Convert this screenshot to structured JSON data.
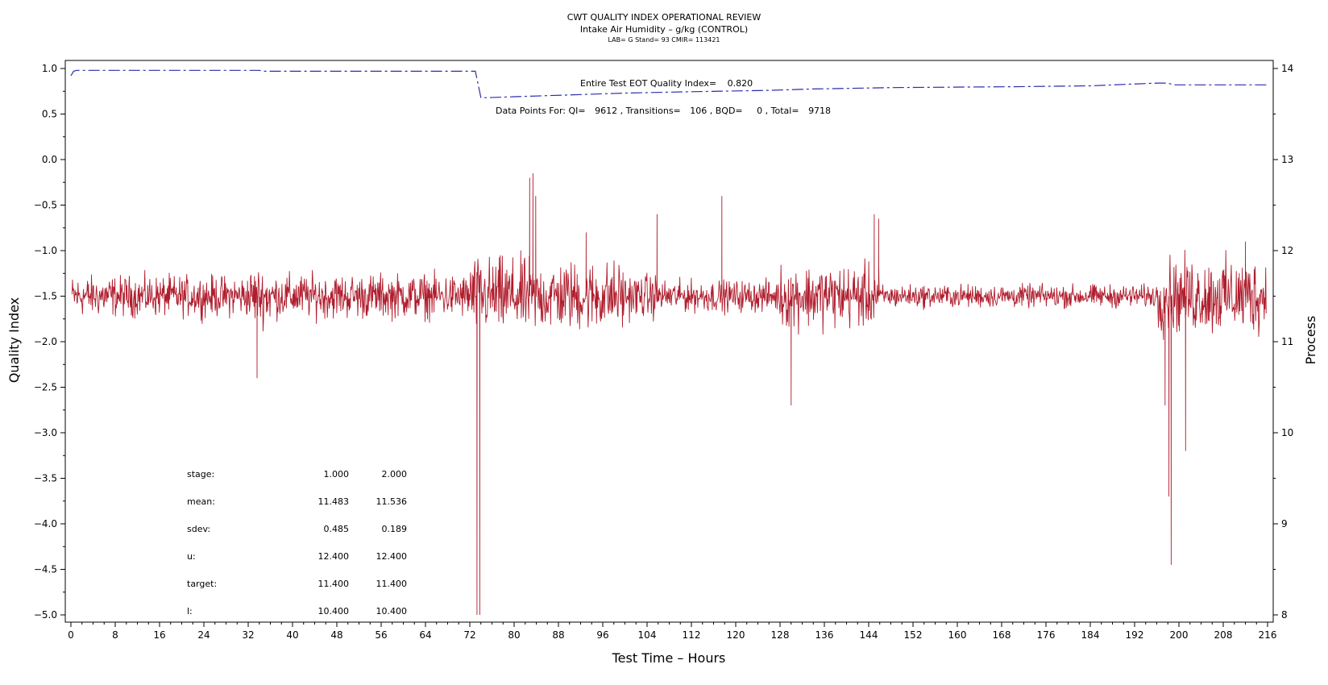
{
  "chart_data": {
    "type": "line",
    "title": "CWT QUALITY INDEX OPERATIONAL REVIEW",
    "subtitle": "Intake Air Humidity – g/kg (CONTROL)",
    "subtitle2": "LAB= G Stand= 93 CMIR= 113421",
    "xlabel": "Test Time – Hours",
    "ylabel": "Quality Index",
    "y2label": "Process",
    "xlim": [
      0,
      216
    ],
    "ylim": [
      -5.0,
      1.0
    ],
    "y2lim": [
      8,
      14
    ],
    "x_ticks": [
      0,
      8,
      16,
      24,
      32,
      40,
      48,
      56,
      64,
      72,
      80,
      88,
      96,
      104,
      112,
      120,
      128,
      136,
      144,
      152,
      160,
      168,
      176,
      184,
      192,
      200,
      208,
      216
    ],
    "x_tick_labels": [
      "0",
      "8",
      "16",
      "24",
      "32",
      "40",
      "48",
      "56",
      "64",
      "72",
      "80",
      "88",
      "96",
      "104",
      "112",
      "120",
      "128",
      "136",
      "144",
      "152",
      "160",
      "168",
      "176",
      "184",
      "192",
      "200",
      "208",
      "216"
    ],
    "y_ticks": [
      1.0,
      0.5,
      0.0,
      -0.5,
      -1.0,
      -1.5,
      -2.0,
      -2.5,
      -3.0,
      -3.5,
      -4.0,
      -4.5,
      -5.0
    ],
    "y_tick_labels": [
      "1.0",
      "0.5",
      "0.0",
      "−0.5",
      "−1.0",
      "−1.5",
      "−2.0",
      "−2.5",
      "−3.0",
      "−3.5",
      "−4.0",
      "−4.5",
      "−5.0"
    ],
    "y2_ticks": [
      14,
      13,
      12,
      11,
      10,
      9,
      8
    ],
    "y2_tick_labels": [
      "14",
      "13",
      "12",
      "11",
      "10",
      "9",
      "8"
    ],
    "annotations": {
      "eot_label": "Entire Test EOT Quality Index=",
      "eot_value": "0.820",
      "points_label": "Data Points For: QI=",
      "qi_count": "9612",
      "transitions_label": ", Transitions=",
      "transitions_count": "106",
      "bqd_label": ", BQD=",
      "bqd_count": "0",
      "total_label": ", Total=",
      "total_count": "9718"
    },
    "stats_table": {
      "rows": [
        {
          "label": "stage:",
          "v1": "1.000",
          "v2": "2.000"
        },
        {
          "label": "mean:",
          "v1": "11.483",
          "v2": "11.536"
        },
        {
          "label": "sdev:",
          "v1": "0.485",
          "v2": "0.189"
        },
        {
          "label": "u:",
          "v1": "12.400",
          "v2": "12.400"
        },
        {
          "label": "target:",
          "v1": "11.400",
          "v2": "11.400"
        },
        {
          "label": "l:",
          "v1": "10.400",
          "v2": "10.400"
        }
      ]
    },
    "series": [
      {
        "axis": "left",
        "style": "dashed",
        "color": "#2b2bb0",
        "x": [
          0,
          0.5,
          1,
          34,
          35,
          73,
          74,
          75,
          80,
          90,
          100,
          112,
          126,
          134,
          148,
          170,
          184,
          196,
          198,
          199,
          205,
          216
        ],
        "y": [
          0.92,
          0.97,
          0.98,
          0.98,
          0.97,
          0.97,
          0.68,
          0.68,
          0.69,
          0.71,
          0.73,
          0.745,
          0.76,
          0.775,
          0.79,
          0.8,
          0.81,
          0.84,
          0.84,
          0.82,
          0.82,
          0.82
        ]
      },
      {
        "axis": "right",
        "style": "solid",
        "color": "#b01e2e",
        "base": 11.5,
        "noise_segments": [
          {
            "x0": 0,
            "x1": 32,
            "amp": 0.32
          },
          {
            "x0": 32,
            "x1": 36,
            "amp": 0.45
          },
          {
            "x0": 36,
            "x1": 72,
            "amp": 0.35
          },
          {
            "x0": 72,
            "x1": 84,
            "amp": 0.6
          },
          {
            "x0": 84,
            "x1": 100,
            "amp": 0.55
          },
          {
            "x0": 100,
            "x1": 106,
            "amp": 0.35
          },
          {
            "x0": 106,
            "x1": 128,
            "amp": 0.25
          },
          {
            "x0": 128,
            "x1": 146,
            "amp": 0.5
          },
          {
            "x0": 146,
            "x1": 196,
            "amp": 0.18
          },
          {
            "x0": 196,
            "x1": 216,
            "amp": 0.6
          }
        ],
        "spikes": [
          {
            "x": 33.6,
            "y": 10.6
          },
          {
            "x": 73.3,
            "y": 8.0
          },
          {
            "x": 73.8,
            "y": 8.0
          },
          {
            "x": 82.8,
            "y": 12.8
          },
          {
            "x": 83.4,
            "y": 12.85
          },
          {
            "x": 83.9,
            "y": 12.6
          },
          {
            "x": 93.0,
            "y": 12.2
          },
          {
            "x": 105.8,
            "y": 12.4
          },
          {
            "x": 117.5,
            "y": 12.6
          },
          {
            "x": 130.0,
            "y": 10.3
          },
          {
            "x": 145.0,
            "y": 12.4
          },
          {
            "x": 145.8,
            "y": 12.35
          },
          {
            "x": 197.5,
            "y": 10.3
          },
          {
            "x": 198.2,
            "y": 9.3
          },
          {
            "x": 198.6,
            "y": 8.55
          },
          {
            "x": 201.2,
            "y": 9.8
          },
          {
            "x": 212.0,
            "y": 12.1
          }
        ]
      }
    ]
  }
}
